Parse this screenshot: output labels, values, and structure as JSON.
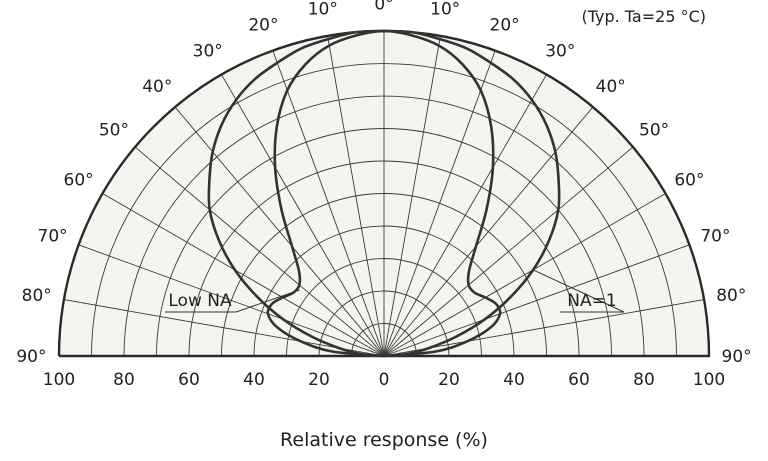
{
  "chart_data": {
    "type": "polar",
    "conditions": "(Typ. Ta=25 °C)",
    "xlabel": "Relative response (%)",
    "radial_range": [
      0,
      100
    ],
    "angle_range": [
      -90,
      90
    ],
    "angle_tick_labels": [
      "90°",
      "80°",
      "70°",
      "60°",
      "50°",
      "40°",
      "30°",
      "20°",
      "10°",
      "0°",
      "10°",
      "20°",
      "30°",
      "40°",
      "50°",
      "60°",
      "70°",
      "80°",
      "90°"
    ],
    "x_tick_labels": [
      "100",
      "80",
      "60",
      "40",
      "20",
      "0",
      "20",
      "40",
      "60",
      "80",
      "100"
    ],
    "series": [
      {
        "name": "Low NA",
        "angles": [
          0,
          5,
          10,
          15,
          20,
          25,
          30,
          35,
          40,
          45,
          50,
          55,
          60,
          65,
          70,
          75,
          80,
          85,
          90
        ],
        "values": [
          100,
          99,
          97,
          93,
          87,
          78,
          67,
          55,
          44,
          37,
          34,
          34,
          36,
          38,
          38,
          34,
          26,
          16,
          0
        ]
      },
      {
        "name": "NA=1",
        "angles": [
          0,
          5,
          10,
          15,
          20,
          25,
          30,
          35,
          40,
          45,
          50,
          55,
          60,
          65,
          70,
          75,
          80,
          85,
          90
        ],
        "values": [
          100,
          100,
          99,
          98,
          96,
          94,
          91,
          87,
          82,
          76,
          70,
          62,
          53,
          43,
          33,
          23,
          14,
          7,
          0
        ]
      }
    ]
  }
}
